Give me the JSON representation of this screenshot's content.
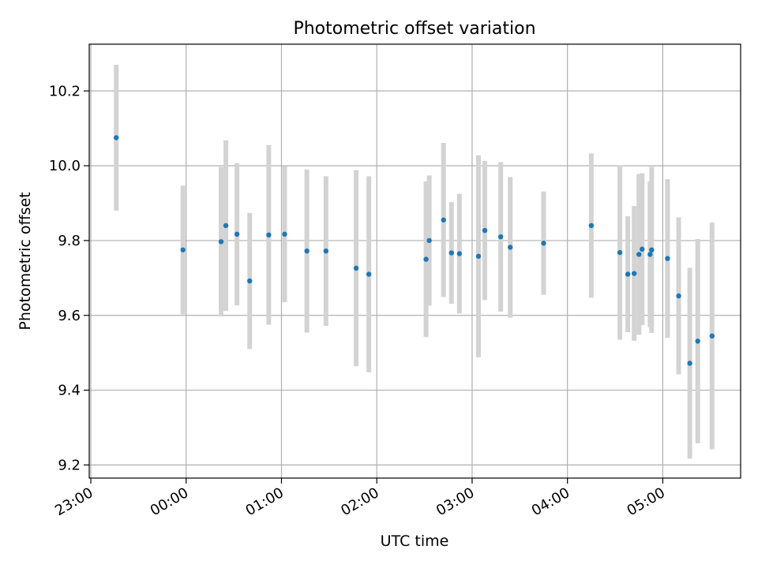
{
  "chart_data": {
    "type": "scatter",
    "title": "Photometric offset variation",
    "xlabel": "UTC time",
    "ylabel": "Photometric offset",
    "xlim": [
      "22:59",
      "05:49"
    ],
    "ylim": [
      9.165,
      10.325
    ],
    "x_ticks": [
      "23:00",
      "00:00",
      "01:00",
      "02:00",
      "03:00",
      "04:00",
      "05:00"
    ],
    "y_ticks": [
      "9.2",
      "9.4",
      "9.6",
      "9.8",
      "10.0",
      "10.2"
    ],
    "grid": true,
    "marker_color": "#1f77b4",
    "errorbar_color": "#d3d3d3",
    "series": [
      {
        "points": [
          {
            "x": "23:16",
            "y": 10.075,
            "err": 0.195
          },
          {
            "x": "23:58",
            "y": 9.775,
            "err": 0.172
          },
          {
            "x": "00:22",
            "y": 9.797,
            "err": 0.2
          },
          {
            "x": "00:25",
            "y": 9.84,
            "err": 0.228
          },
          {
            "x": "00:32",
            "y": 9.817,
            "err": 0.19
          },
          {
            "x": "00:40",
            "y": 9.692,
            "err": 0.182
          },
          {
            "x": "00:52",
            "y": 9.815,
            "err": 0.24
          },
          {
            "x": "01:02",
            "y": 9.817,
            "err": 0.182
          },
          {
            "x": "01:16",
            "y": 9.772,
            "err": 0.218
          },
          {
            "x": "01:28",
            "y": 9.772,
            "err": 0.2
          },
          {
            "x": "01:47",
            "y": 9.726,
            "err": 0.262
          },
          {
            "x": "01:55",
            "y": 9.71,
            "err": 0.262
          },
          {
            "x": "02:31",
            "y": 9.75,
            "err": 0.208
          },
          {
            "x": "02:33",
            "y": 9.8,
            "err": 0.174
          },
          {
            "x": "02:42",
            "y": 9.855,
            "err": 0.206
          },
          {
            "x": "02:47",
            "y": 9.767,
            "err": 0.136
          },
          {
            "x": "02:52",
            "y": 9.765,
            "err": 0.16
          },
          {
            "x": "03:04",
            "y": 9.758,
            "err": 0.27
          },
          {
            "x": "03:08",
            "y": 9.827,
            "err": 0.186
          },
          {
            "x": "03:18",
            "y": 9.81,
            "err": 0.2
          },
          {
            "x": "03:24",
            "y": 9.782,
            "err": 0.188
          },
          {
            "x": "03:45",
            "y": 9.793,
            "err": 0.138
          },
          {
            "x": "04:15",
            "y": 9.84,
            "err": 0.193
          },
          {
            "x": "04:33",
            "y": 9.768,
            "err": 0.233
          },
          {
            "x": "04:38",
            "y": 9.71,
            "err": 0.155
          },
          {
            "x": "04:42",
            "y": 9.712,
            "err": 0.18
          },
          {
            "x": "04:45",
            "y": 9.763,
            "err": 0.215
          },
          {
            "x": "04:47",
            "y": 9.777,
            "err": 0.203
          },
          {
            "x": "04:52",
            "y": 9.763,
            "err": 0.195
          },
          {
            "x": "04:53",
            "y": 9.775,
            "err": 0.222
          },
          {
            "x": "05:03",
            "y": 9.752,
            "err": 0.212
          },
          {
            "x": "05:10",
            "y": 9.652,
            "err": 0.21
          },
          {
            "x": "05:17",
            "y": 9.472,
            "err": 0.255
          },
          {
            "x": "05:22",
            "y": 9.531,
            "err": 0.273
          },
          {
            "x": "05:31",
            "y": 9.545,
            "err": 0.303
          }
        ]
      }
    ]
  }
}
